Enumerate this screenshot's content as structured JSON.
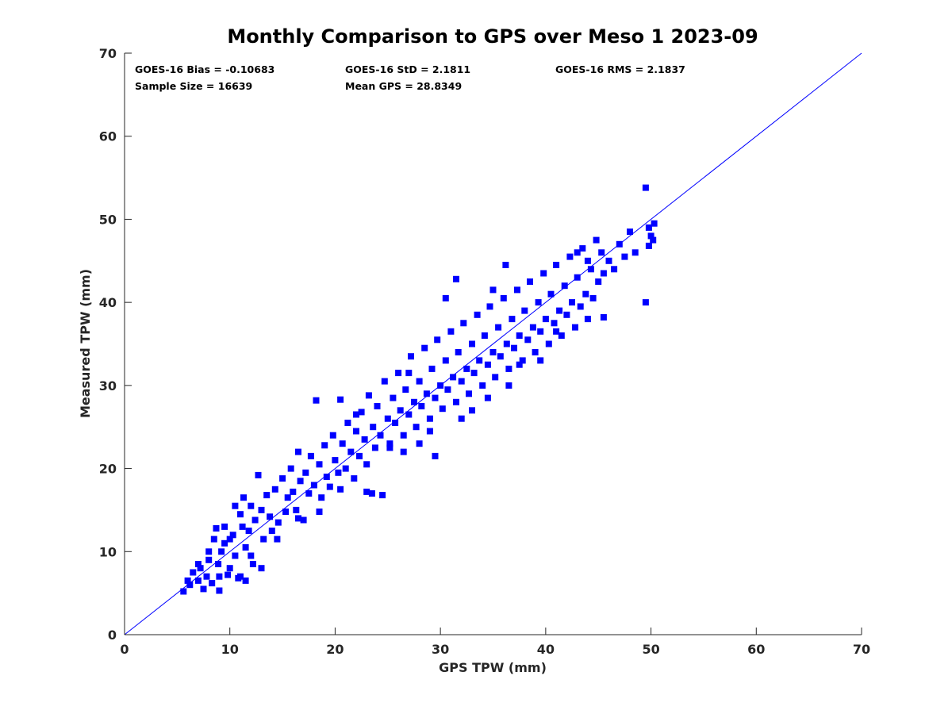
{
  "chart_data": {
    "type": "scatter",
    "title": "Monthly Comparison to GPS over Meso 1 2023-09",
    "xlabel": "GPS TPW (mm)",
    "ylabel": "Measured TPW (mm)",
    "xlim": [
      0,
      70
    ],
    "ylim": [
      0,
      70
    ],
    "xticks": [
      "0",
      "10",
      "20",
      "30",
      "40",
      "50",
      "60",
      "70"
    ],
    "yticks": [
      "0",
      "10",
      "20",
      "30",
      "40",
      "50",
      "60",
      "70"
    ],
    "grid": false,
    "marker_color": "#0000ff",
    "reference_line": {
      "label": "",
      "x": [
        0,
        70
      ],
      "y": [
        0,
        70
      ],
      "color": "#0000ff"
    },
    "stats": [
      "GOES-16 Bias = -0.10683",
      "GOES-16 StD = 2.1811",
      "GOES-16 RMS = 2.1837",
      "Sample Size = 16639",
      "Mean GPS = 28.8349"
    ],
    "series": [
      {
        "values": [
          [
            5.6,
            5.2
          ],
          [
            6.2,
            6.0
          ],
          [
            6.5,
            7.5
          ],
          [
            7.0,
            6.5
          ],
          [
            7.2,
            8.0
          ],
          [
            7.5,
            5.5
          ],
          [
            7.8,
            7.0
          ],
          [
            8.0,
            9.0
          ],
          [
            8.3,
            6.2
          ],
          [
            8.5,
            11.5
          ],
          [
            8.7,
            12.8
          ],
          [
            8.9,
            8.5
          ],
          [
            9.0,
            5.3
          ],
          [
            9.2,
            10.0
          ],
          [
            9.5,
            11.0
          ],
          [
            9.8,
            7.2
          ],
          [
            10.0,
            8.0
          ],
          [
            10.3,
            12.0
          ],
          [
            10.5,
            9.5
          ],
          [
            10.8,
            6.8
          ],
          [
            11.0,
            14.5
          ],
          [
            11.2,
            13.0
          ],
          [
            11.3,
            16.5
          ],
          [
            11.5,
            10.5
          ],
          [
            11.8,
            12.5
          ],
          [
            12.0,
            15.5
          ],
          [
            12.2,
            8.5
          ],
          [
            12.4,
            13.8
          ],
          [
            12.7,
            19.2
          ],
          [
            13.0,
            15.0
          ],
          [
            13.2,
            11.5
          ],
          [
            13.5,
            16.8
          ],
          [
            13.8,
            14.2
          ],
          [
            14.0,
            12.5
          ],
          [
            14.3,
            17.5
          ],
          [
            14.6,
            13.5
          ],
          [
            15.0,
            18.8
          ],
          [
            15.3,
            14.8
          ],
          [
            15.5,
            16.5
          ],
          [
            15.8,
            20.0
          ],
          [
            16.0,
            17.2
          ],
          [
            16.3,
            15.0
          ],
          [
            16.5,
            22.0
          ],
          [
            16.7,
            18.5
          ],
          [
            17.0,
            13.8
          ],
          [
            17.2,
            19.5
          ],
          [
            17.5,
            17.0
          ],
          [
            17.7,
            21.5
          ],
          [
            18.0,
            18.0
          ],
          [
            18.2,
            28.2
          ],
          [
            18.5,
            20.5
          ],
          [
            18.7,
            16.5
          ],
          [
            19.0,
            22.8
          ],
          [
            19.2,
            19.0
          ],
          [
            19.5,
            17.8
          ],
          [
            19.8,
            24.0
          ],
          [
            20.0,
            21.0
          ],
          [
            20.3,
            19.5
          ],
          [
            20.5,
            28.3
          ],
          [
            20.7,
            23.0
          ],
          [
            21.0,
            20.0
          ],
          [
            21.2,
            25.5
          ],
          [
            21.5,
            22.0
          ],
          [
            21.8,
            18.8
          ],
          [
            22.0,
            24.5
          ],
          [
            22.3,
            21.5
          ],
          [
            22.5,
            26.8
          ],
          [
            22.8,
            23.5
          ],
          [
            23.0,
            20.5
          ],
          [
            23.2,
            28.8
          ],
          [
            23.5,
            17.0
          ],
          [
            23.6,
            25.0
          ],
          [
            23.8,
            22.5
          ],
          [
            24.0,
            27.5
          ],
          [
            24.3,
            24.0
          ],
          [
            24.5,
            16.8
          ],
          [
            24.7,
            30.5
          ],
          [
            25.0,
            26.0
          ],
          [
            25.2,
            23.0
          ],
          [
            25.5,
            28.5
          ],
          [
            25.7,
            25.5
          ],
          [
            26.0,
            31.5
          ],
          [
            26.2,
            27.0
          ],
          [
            26.5,
            24.0
          ],
          [
            26.7,
            29.5
          ],
          [
            27.0,
            26.5
          ],
          [
            27.2,
            33.5
          ],
          [
            27.5,
            28.0
          ],
          [
            27.7,
            25.0
          ],
          [
            28.0,
            30.5
          ],
          [
            28.2,
            27.5
          ],
          [
            28.5,
            34.5
          ],
          [
            28.7,
            29.0
          ],
          [
            29.0,
            26.0
          ],
          [
            29.2,
            32.0
          ],
          [
            29.5,
            28.5
          ],
          [
            29.7,
            35.5
          ],
          [
            30.0,
            30.0
          ],
          [
            30.2,
            27.2
          ],
          [
            30.5,
            33.0
          ],
          [
            30.7,
            29.5
          ],
          [
            31.0,
            36.5
          ],
          [
            31.2,
            31.0
          ],
          [
            31.5,
            28.0
          ],
          [
            31.7,
            34.0
          ],
          [
            32.0,
            30.5
          ],
          [
            32.2,
            37.5
          ],
          [
            32.5,
            32.0
          ],
          [
            32.7,
            29.0
          ],
          [
            33.0,
            35.0
          ],
          [
            33.2,
            31.5
          ],
          [
            33.5,
            38.5
          ],
          [
            33.7,
            33.0
          ],
          [
            34.0,
            30.0
          ],
          [
            34.2,
            36.0
          ],
          [
            34.5,
            32.5
          ],
          [
            34.7,
            39.5
          ],
          [
            35.0,
            34.0
          ],
          [
            35.2,
            31.0
          ],
          [
            35.5,
            37.0
          ],
          [
            35.7,
            33.5
          ],
          [
            36.0,
            40.5
          ],
          [
            36.3,
            35.0
          ],
          [
            36.5,
            32.0
          ],
          [
            36.8,
            38.0
          ],
          [
            37.0,
            34.5
          ],
          [
            37.3,
            41.5
          ],
          [
            37.5,
            36.0
          ],
          [
            37.8,
            33.0
          ],
          [
            38.0,
            39.0
          ],
          [
            38.3,
            35.5
          ],
          [
            38.5,
            42.5
          ],
          [
            38.8,
            37.0
          ],
          [
            39.0,
            34.0
          ],
          [
            39.3,
            40.0
          ],
          [
            39.5,
            36.5
          ],
          [
            39.8,
            43.5
          ],
          [
            40.0,
            38.0
          ],
          [
            40.3,
            35.0
          ],
          [
            40.5,
            41.0
          ],
          [
            40.8,
            37.5
          ],
          [
            41.0,
            44.5
          ],
          [
            41.3,
            39.0
          ],
          [
            41.5,
            36.0
          ],
          [
            41.8,
            42.0
          ],
          [
            42.0,
            38.5
          ],
          [
            42.3,
            45.5
          ],
          [
            42.5,
            40.0
          ],
          [
            42.8,
            37.0
          ],
          [
            43.0,
            43.0
          ],
          [
            43.3,
            39.5
          ],
          [
            43.5,
            46.5
          ],
          [
            43.8,
            41.0
          ],
          [
            44.0,
            38.0
          ],
          [
            44.3,
            44.0
          ],
          [
            44.5,
            40.5
          ],
          [
            44.8,
            47.5
          ],
          [
            45.0,
            42.5
          ],
          [
            45.3,
            46.0
          ],
          [
            45.5,
            43.5
          ],
          [
            46.0,
            45.0
          ],
          [
            46.5,
            44.0
          ],
          [
            47.0,
            47.0
          ],
          [
            47.5,
            45.5
          ],
          [
            48.0,
            48.5
          ],
          [
            48.5,
            46.0
          ],
          [
            49.5,
            53.8
          ],
          [
            49.5,
            40.0
          ],
          [
            49.8,
            49.0
          ],
          [
            50.0,
            48.0
          ],
          [
            50.2,
            47.5
          ],
          [
            50.3,
            49.5
          ],
          [
            49.8,
            46.8
          ],
          [
            22.0,
            26.5
          ],
          [
            27.0,
            31.5
          ],
          [
            30.5,
            40.5
          ],
          [
            31.5,
            42.8
          ],
          [
            35.0,
            41.5
          ],
          [
            36.2,
            44.5
          ],
          [
            43.0,
            46.0
          ],
          [
            44.0,
            45.0
          ],
          [
            45.5,
            38.2
          ],
          [
            25.2,
            22.5
          ],
          [
            28.0,
            23.0
          ],
          [
            29.5,
            21.5
          ],
          [
            33.0,
            27.0
          ],
          [
            36.5,
            30.0
          ],
          [
            39.5,
            33.0
          ],
          [
            41.0,
            36.5
          ],
          [
            14.5,
            11.5
          ],
          [
            13.0,
            8.0
          ],
          [
            11.0,
            7.0
          ],
          [
            12.0,
            9.5
          ],
          [
            10.0,
            11.5
          ],
          [
            9.5,
            13.0
          ],
          [
            10.5,
            15.5
          ],
          [
            8.0,
            10.0
          ],
          [
            7.0,
            8.5
          ],
          [
            6.0,
            6.5
          ],
          [
            9.0,
            7.0
          ],
          [
            11.5,
            6.5
          ],
          [
            16.5,
            14.0
          ],
          [
            18.5,
            14.8
          ],
          [
            20.5,
            17.5
          ],
          [
            23.0,
            17.2
          ],
          [
            26.5,
            22.0
          ],
          [
            29.0,
            24.5
          ],
          [
            32.0,
            26.0
          ],
          [
            34.5,
            28.5
          ],
          [
            37.5,
            32.5
          ]
        ]
      }
    ]
  }
}
